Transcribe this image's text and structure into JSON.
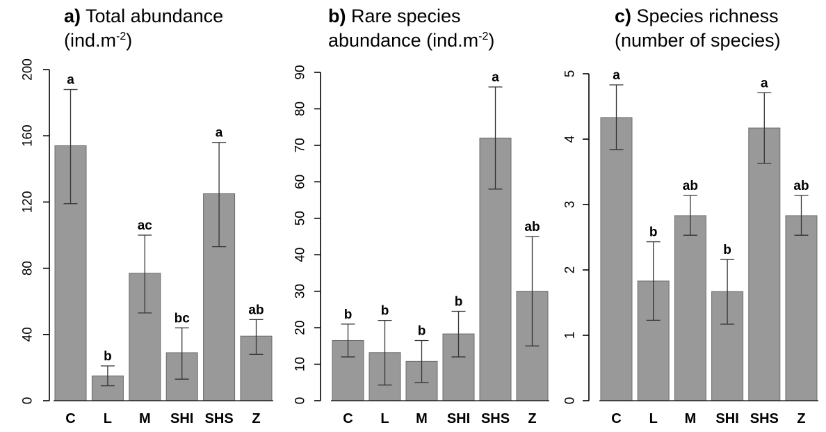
{
  "chart_data": [
    {
      "type": "bar",
      "panel_label": "a)",
      "title_line1": "Total abundance",
      "title_line2_prefix": "(ind.m",
      "title_line2_sup": "-2",
      "title_line2_suffix": ")",
      "categories": [
        "C",
        "L",
        "M",
        "SHI",
        "SHS",
        "Z"
      ],
      "values": [
        154,
        15,
        77,
        29,
        125,
        39
      ],
      "err_low": [
        119,
        9,
        53,
        13,
        93,
        28
      ],
      "err_high": [
        188,
        21,
        100,
        44,
        156,
        49
      ],
      "letters": [
        "a",
        "b",
        "ac",
        "bc",
        "a",
        "ab"
      ],
      "ylim": [
        0,
        200
      ],
      "yticks": [
        "0",
        "40",
        "80",
        "120",
        "160",
        "200"
      ],
      "ytick_values": [
        0,
        40,
        80,
        120,
        160,
        200
      ],
      "bar_color": "#999999"
    },
    {
      "type": "bar",
      "panel_label": "b)",
      "title_line1": "Rare species",
      "title_line2_prefix": "abundance  (ind.m",
      "title_line2_sup": "-2",
      "title_line2_suffix": ")",
      "categories": [
        "C",
        "L",
        "M",
        "SHI",
        "SHS",
        "Z"
      ],
      "values": [
        16.5,
        13.2,
        10.8,
        18.3,
        72,
        30
      ],
      "err_low": [
        12,
        4.3,
        5,
        12,
        58,
        15
      ],
      "err_high": [
        21,
        22,
        16.5,
        24.5,
        86,
        45
      ],
      "letters": [
        "b",
        "b",
        "b",
        "b",
        "a",
        "ab"
      ],
      "ylim": [
        0,
        90
      ],
      "yticks": [
        "0",
        "10",
        "20",
        "30",
        "40",
        "50",
        "60",
        "70",
        "80",
        "90"
      ],
      "ytick_values": [
        0,
        10,
        20,
        30,
        40,
        50,
        60,
        70,
        80,
        90
      ],
      "bar_color": "#999999"
    },
    {
      "type": "bar",
      "panel_label": "c)",
      "title_line1": "Species richness",
      "title_line2_prefix": "(number of species)",
      "title_line2_sup": "",
      "title_line2_suffix": "",
      "categories": [
        "C",
        "L",
        "M",
        "SHI",
        "SHS",
        "Z"
      ],
      "values": [
        4.33,
        1.83,
        2.83,
        1.67,
        4.17,
        2.83
      ],
      "err_low": [
        3.84,
        1.23,
        2.53,
        1.17,
        3.63,
        2.53
      ],
      "err_high": [
        4.83,
        2.43,
        3.14,
        2.16,
        4.71,
        3.14
      ],
      "letters": [
        "a",
        "b",
        "ab",
        "b",
        "a",
        "ab"
      ],
      "ylim": [
        0,
        5
      ],
      "yticks": [
        "0",
        "1",
        "2",
        "3",
        "4",
        "5"
      ],
      "ytick_values": [
        0,
        1,
        2,
        3,
        4,
        5
      ],
      "bar_color": "#999999"
    }
  ]
}
